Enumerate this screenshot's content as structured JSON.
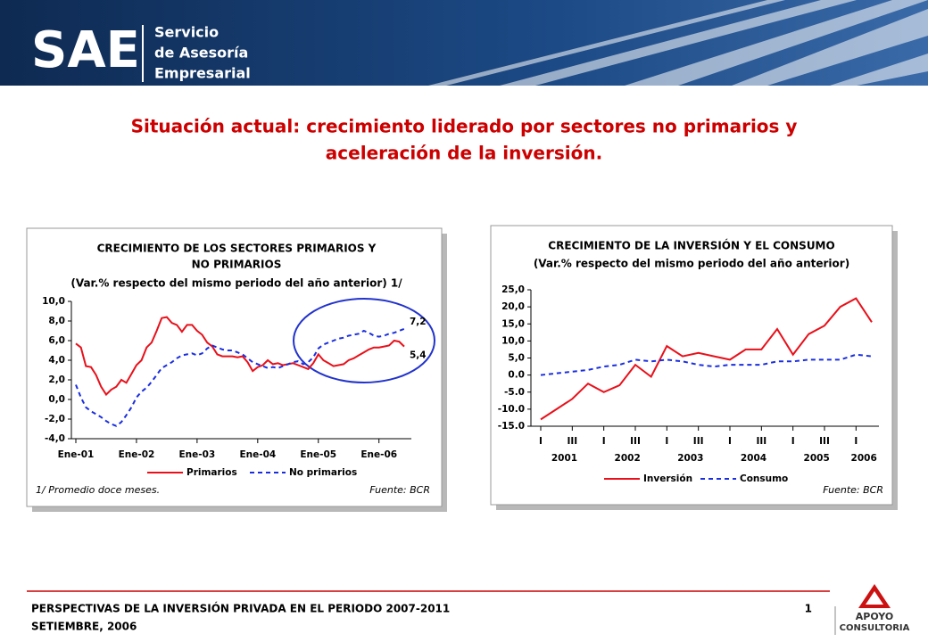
{
  "header": {
    "logo": "SAE",
    "tagline": [
      "Servicio",
      "de Asesoría",
      "Empresarial"
    ]
  },
  "title": [
    "Situación actual: crecimiento liderado por sectores no primarios y",
    "aceleración de la inversión."
  ],
  "chart_data": [
    {
      "type": "line",
      "title": [
        "CRECIMIENTO DE LOS SECTORES PRIMARIOS Y",
        "NO PRIMARIOS"
      ],
      "subtitle": "(Var.% respecto del mismo periodo del año anterior) 1/",
      "categories": [
        "Ene-01",
        null,
        null,
        null,
        null,
        null,
        null,
        null,
        null,
        null,
        null,
        null,
        "Ene-02",
        null,
        null,
        null,
        null,
        null,
        null,
        null,
        null,
        null,
        null,
        null,
        "Ene-03",
        null,
        null,
        null,
        null,
        null,
        null,
        null,
        null,
        null,
        null,
        null,
        "Ene-04",
        null,
        null,
        null,
        null,
        null,
        null,
        null,
        null,
        null,
        null,
        null,
        "Ene-05",
        null,
        null,
        null,
        null,
        null,
        null,
        null,
        null,
        null,
        null,
        null,
        "Ene-06",
        null,
        null,
        null,
        null,
        null
      ],
      "series": [
        {
          "name": "Primarios",
          "color": "#e8101a",
          "dash": false,
          "values": [
            5.7,
            5.3,
            3.4,
            3.3,
            2.5,
            1.3,
            0.5,
            1.0,
            1.3,
            2.0,
            1.7,
            2.6,
            3.5,
            4.0,
            5.3,
            5.8,
            7.0,
            8.3,
            8.4,
            7.8,
            7.6,
            6.9,
            7.6,
            7.6,
            7.0,
            6.6,
            5.8,
            5.4,
            4.6,
            4.4,
            4.4,
            4.4,
            4.3,
            4.4,
            3.8,
            2.9,
            3.3,
            3.5,
            4.0,
            3.6,
            3.7,
            3.5,
            3.6,
            3.7,
            3.5,
            3.3,
            3.1,
            3.7,
            4.6,
            4.0,
            3.7,
            3.4,
            3.5,
            3.6,
            4.0,
            4.2,
            4.5,
            4.8,
            5.1,
            5.3,
            5.3,
            5.4,
            5.5,
            6.0,
            5.9,
            5.4
          ],
          "value_labels": [
            null,
            null,
            null,
            null,
            null,
            null,
            null,
            null,
            null,
            null,
            null,
            null,
            null,
            null,
            null,
            null,
            null,
            null,
            null,
            null,
            null,
            null,
            null,
            null,
            null,
            null,
            null,
            null,
            null,
            null,
            null,
            null,
            null,
            null,
            null,
            null,
            null,
            null,
            null,
            null,
            null,
            null,
            null,
            null,
            null,
            null,
            null,
            null,
            null,
            null,
            null,
            null,
            null,
            null,
            null,
            null,
            null,
            null,
            null,
            null,
            null,
            null,
            null,
            null,
            null,
            "5,4"
          ]
        },
        {
          "name": "No primarios",
          "color": "#1a2ee0",
          "dash": true,
          "values": [
            1.5,
            0.2,
            -0.8,
            -1.2,
            -1.5,
            -1.8,
            -2.2,
            -2.5,
            -2.7,
            -2.3,
            -1.6,
            -0.8,
            0.2,
            0.8,
            1.2,
            1.8,
            2.5,
            3.2,
            3.5,
            3.8,
            4.2,
            4.5,
            4.6,
            4.7,
            4.5,
            4.7,
            5.2,
            5.5,
            5.3,
            5.1,
            5.0,
            5.0,
            4.8,
            4.6,
            4.2,
            3.8,
            3.6,
            3.4,
            3.2,
            3.3,
            3.2,
            3.4,
            3.6,
            3.8,
            3.9,
            3.6,
            3.8,
            4.3,
            5.2,
            5.6,
            5.8,
            6.0,
            6.2,
            6.3,
            6.5,
            6.6,
            6.7,
            7.0,
            6.8,
            6.5,
            6.4,
            6.5,
            6.7,
            6.8,
            7.0,
            7.2
          ],
          "value_labels": [
            null,
            null,
            null,
            null,
            null,
            null,
            null,
            null,
            null,
            null,
            null,
            null,
            null,
            null,
            null,
            null,
            null,
            null,
            null,
            null,
            null,
            null,
            null,
            null,
            null,
            null,
            null,
            null,
            null,
            null,
            null,
            null,
            null,
            null,
            null,
            null,
            null,
            null,
            null,
            null,
            null,
            null,
            null,
            null,
            null,
            null,
            null,
            null,
            null,
            null,
            null,
            null,
            null,
            null,
            null,
            null,
            null,
            null,
            null,
            null,
            null,
            null,
            null,
            null,
            null,
            "7,2"
          ]
        }
      ],
      "ylim": [
        -4,
        10
      ],
      "yticks": [
        {
          "value": -4,
          "label": "-4,0"
        },
        {
          "value": -2,
          "label": "-2,0"
        },
        {
          "value": 0,
          "label": "0,0"
        },
        {
          "value": 2,
          "label": "2,0"
        },
        {
          "value": 4,
          "label": "4,0"
        },
        {
          "value": 6,
          "label": "6,0"
        },
        {
          "value": 8,
          "label": "8,0"
        },
        {
          "value": 10,
          "label": "10,0"
        }
      ],
      "note": "1/ Promedio doce meses.",
      "source": "Fuente: BCR"
    },
    {
      "type": "line",
      "title": [
        "CRECIMIENTO DE LA INVERSIÓN Y EL CONSUMO"
      ],
      "subtitle": "(Var.% respecto del mismo periodo del año anterior)",
      "categories": [
        "I",
        null,
        "III",
        null,
        "I",
        null,
        "III",
        null,
        "I",
        null,
        "III",
        null,
        "I",
        null,
        "III",
        null,
        "I",
        null,
        "III",
        null,
        "I",
        null
      ],
      "groups": [
        "2001",
        "2002",
        "2003",
        "2004",
        "2005",
        "2006"
      ],
      "series": [
        {
          "name": "Inversión",
          "color": "#e8101a",
          "dash": false,
          "values": [
            -13,
            -10,
            -7,
            -2.5,
            -5,
            -3,
            3,
            -0.5,
            8.5,
            5.5,
            6.5,
            5.5,
            4.5,
            7.5,
            7.5,
            13.5,
            6,
            12,
            14.5,
            20,
            22.5,
            15.5
          ]
        },
        {
          "name": "Consumo",
          "color": "#1a2ee0",
          "dash": true,
          "values": [
            0,
            0.5,
            1,
            1.5,
            2.5,
            3,
            4.5,
            4,
            4.5,
            4,
            3,
            2.5,
            3,
            3,
            3,
            4,
            4,
            4.5,
            4.5,
            4.5,
            6,
            5.5
          ]
        }
      ],
      "ylim": [
        -15,
        25
      ],
      "yticks": [
        {
          "value": -15,
          "label": "-15.0"
        },
        {
          "value": -10,
          "label": "-10.0"
        },
        {
          "value": -5,
          "label": "-5.0"
        },
        {
          "value": 0,
          "label": "0.0"
        },
        {
          "value": 5,
          "label": "5,0"
        },
        {
          "value": 10,
          "label": "10,0"
        },
        {
          "value": 15,
          "label": "15,0"
        },
        {
          "value": 20,
          "label": "20,0"
        },
        {
          "value": 25,
          "label": "25,0"
        }
      ],
      "source": "Fuente: BCR"
    }
  ],
  "footer": {
    "text": "PERSPECTIVAS DE LA INVERSIÓN PRIVADA EN EL PERIODO 2007-2011",
    "date": "SETIEMBRE, 2006",
    "page": 1,
    "brand": [
      "APOYO",
      "CONSULTORIA"
    ]
  }
}
